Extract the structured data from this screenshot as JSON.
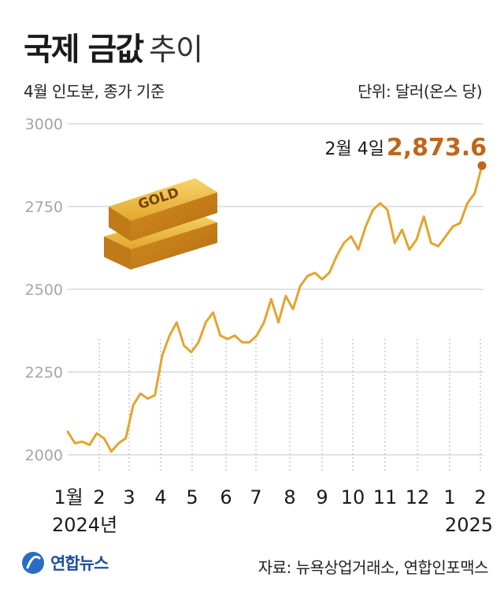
{
  "header": {
    "title_bold": "국제 금값",
    "title_light": "추이",
    "subtitle": "4월 인도분, 종가 기준",
    "unit": "단위: 달러(온스 당)"
  },
  "annotation": {
    "date": "2월 4일",
    "value": "2,873.6"
  },
  "footer": {
    "source": "자료: 뉴욕상업거래소, 연합인포맥스",
    "logo_text": "연합뉴스"
  },
  "gold_bar_label": "GOLD",
  "colors": {
    "line": "#e3a42f",
    "highlight": "#c0651c",
    "grid": "#d9d9d9",
    "axis_text": "#a5a5a5",
    "logo": "#1d4f9c"
  },
  "chart_data": {
    "type": "line",
    "title": "국제 금값 추이",
    "ylim": [
      2000,
      3000
    ],
    "yticks": [
      "3000",
      "2750",
      "2500",
      "2250",
      "2000"
    ],
    "xticks": [
      "1월",
      "2",
      "3",
      "4",
      "5",
      "6",
      "7",
      "8",
      "9",
      "10",
      "11",
      "12",
      "1",
      "2"
    ],
    "xyear_labels": [
      "2024년",
      "2025"
    ],
    "x": [
      "2024-01-02",
      "2024-01-09",
      "2024-01-16",
      "2024-01-23",
      "2024-01-30",
      "2024-02-06",
      "2024-02-13",
      "2024-02-20",
      "2024-02-27",
      "2024-03-05",
      "2024-03-12",
      "2024-03-19",
      "2024-03-26",
      "2024-04-02",
      "2024-04-09",
      "2024-04-16",
      "2024-04-23",
      "2024-04-30",
      "2024-05-07",
      "2024-05-14",
      "2024-05-21",
      "2024-05-28",
      "2024-06-04",
      "2024-06-11",
      "2024-06-18",
      "2024-06-25",
      "2024-07-02",
      "2024-07-09",
      "2024-07-16",
      "2024-07-23",
      "2024-07-30",
      "2024-08-06",
      "2024-08-13",
      "2024-08-20",
      "2024-08-27",
      "2024-09-03",
      "2024-09-10",
      "2024-09-17",
      "2024-09-24",
      "2024-10-01",
      "2024-10-08",
      "2024-10-15",
      "2024-10-22",
      "2024-10-29",
      "2024-11-05",
      "2024-11-12",
      "2024-11-19",
      "2024-11-26",
      "2024-12-03",
      "2024-12-10",
      "2024-12-17",
      "2024-12-24",
      "2024-12-31",
      "2025-01-07",
      "2025-01-14",
      "2025-01-21",
      "2025-01-28",
      "2025-02-04"
    ],
    "values": [
      2070,
      2035,
      2040,
      2030,
      2065,
      2050,
      2010,
      2035,
      2050,
      2150,
      2185,
      2170,
      2180,
      2300,
      2360,
      2400,
      2330,
      2310,
      2340,
      2400,
      2430,
      2360,
      2350,
      2360,
      2340,
      2340,
      2360,
      2400,
      2470,
      2400,
      2480,
      2440,
      2510,
      2540,
      2550,
      2530,
      2550,
      2600,
      2640,
      2660,
      2620,
      2690,
      2740,
      2760,
      2740,
      2640,
      2680,
      2620,
      2650,
      2720,
      2640,
      2630,
      2660,
      2690,
      2700,
      2760,
      2790,
      2873.6
    ],
    "highlight_point": {
      "x": "2025-02-04",
      "y": 2873.6
    }
  }
}
